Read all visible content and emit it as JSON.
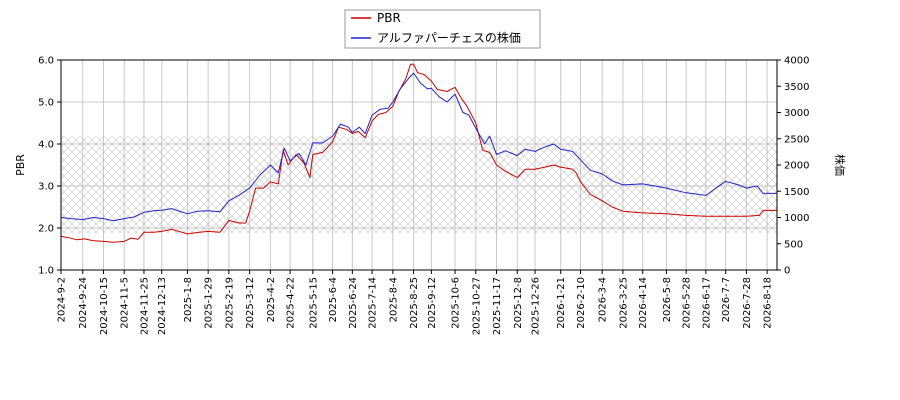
{
  "chart_data": {
    "type": "line",
    "title": "",
    "legend": {
      "placement": "top-center",
      "entries": [
        "PBR",
        "アルファパーチェスの株価"
      ]
    },
    "y_left": {
      "label": "PBR",
      "lim": [
        1.0,
        6.0
      ],
      "ticks": [
        "1.0",
        "2.0",
        "3.0",
        "4.0",
        "5.0",
        "6.0"
      ]
    },
    "y_right": {
      "label": "株価",
      "lim": [
        0,
        4000
      ],
      "ticks": [
        "0",
        "500",
        "1000",
        "1500",
        "2000",
        "2500",
        "3000",
        "3500",
        "4000"
      ]
    },
    "x_lim": [
      "2024-09-02",
      "2026-08-28"
    ],
    "x_ticks": [
      "2024-9-2",
      "2024-9-24",
      "2024-10-15",
      "2024-11-5",
      "2024-11-25",
      "2024-12-13",
      "2025-1-8",
      "2025-1-29",
      "2025-2-19",
      "2025-3-12",
      "2025-4-2",
      "2025-4-22",
      "2025-5-15",
      "2025-6-4",
      "2025-6-24",
      "2025-7-14",
      "2025-8-4",
      "2025-8-25",
      "2025-9-12",
      "2025-10-6",
      "2025-10-27",
      "2025-11-17",
      "2025-12-8",
      "2025-12-26",
      "2026-1-21",
      "2026-2-10",
      "2026-3-4",
      "2026-3-25",
      "2026-4-14",
      "2026-5-8",
      "2026-5-28",
      "2026-6-17",
      "2026-7-7",
      "2026-7-28",
      "2026-8-18"
    ],
    "grid": true,
    "hatch_band": {
      "y2_range": [
        700,
        2550
      ]
    },
    "series": [
      {
        "name": "PBR",
        "axis": "left",
        "color": "#cc0000",
        "points": [
          [
            "2024-09-02",
            1.8
          ],
          [
            "2024-09-10",
            1.77
          ],
          [
            "2024-09-18",
            1.72
          ],
          [
            "2024-09-26",
            1.74
          ],
          [
            "2024-10-04",
            1.7
          ],
          [
            "2024-10-15",
            1.68
          ],
          [
            "2024-10-25",
            1.66
          ],
          [
            "2024-11-05",
            1.68
          ],
          [
            "2024-11-12",
            1.76
          ],
          [
            "2024-11-19",
            1.73
          ],
          [
            "2024-11-25",
            1.9
          ],
          [
            "2024-12-05",
            1.9
          ],
          [
            "2024-12-13",
            1.92
          ],
          [
            "2024-12-23",
            1.97
          ],
          [
            "2025-01-08",
            1.86
          ],
          [
            "2025-01-20",
            1.9
          ],
          [
            "2025-01-29",
            1.92
          ],
          [
            "2025-02-10",
            1.9
          ],
          [
            "2025-02-19",
            2.18
          ],
          [
            "2025-03-01",
            2.12
          ],
          [
            "2025-03-08",
            2.12
          ],
          [
            "2025-03-12",
            2.4
          ],
          [
            "2025-03-18",
            2.95
          ],
          [
            "2025-03-26",
            2.95
          ],
          [
            "2025-04-02",
            3.1
          ],
          [
            "2025-04-10",
            3.05
          ],
          [
            "2025-04-15",
            3.85
          ],
          [
            "2025-04-20",
            3.5
          ],
          [
            "2025-04-28",
            3.75
          ],
          [
            "2025-05-06",
            3.55
          ],
          [
            "2025-05-12",
            3.2
          ],
          [
            "2025-05-15",
            3.75
          ],
          [
            "2025-05-25",
            3.8
          ],
          [
            "2025-06-04",
            4.05
          ],
          [
            "2025-06-10",
            4.4
          ],
          [
            "2025-06-18",
            4.35
          ],
          [
            "2025-06-24",
            4.25
          ],
          [
            "2025-06-30",
            4.3
          ],
          [
            "2025-07-07",
            4.15
          ],
          [
            "2025-07-14",
            4.55
          ],
          [
            "2025-07-20",
            4.7
          ],
          [
            "2025-07-28",
            4.75
          ],
          [
            "2025-08-04",
            4.9
          ],
          [
            "2025-08-10",
            5.25
          ],
          [
            "2025-08-17",
            5.55
          ],
          [
            "2025-08-22",
            5.9
          ],
          [
            "2025-08-25",
            5.9
          ],
          [
            "2025-08-29",
            5.7
          ],
          [
            "2025-09-05",
            5.65
          ],
          [
            "2025-09-12",
            5.5
          ],
          [
            "2025-09-18",
            5.3
          ],
          [
            "2025-09-28",
            5.25
          ],
          [
            "2025-10-06",
            5.35
          ],
          [
            "2025-10-12",
            5.1
          ],
          [
            "2025-10-18",
            4.9
          ],
          [
            "2025-10-27",
            4.5
          ],
          [
            "2025-11-03",
            3.85
          ],
          [
            "2025-11-10",
            3.8
          ],
          [
            "2025-11-17",
            3.5
          ],
          [
            "2025-11-26",
            3.35
          ],
          [
            "2025-12-08",
            3.2
          ],
          [
            "2025-12-16",
            3.4
          ],
          [
            "2025-12-26",
            3.4
          ],
          [
            "2026-01-05",
            3.45
          ],
          [
            "2026-01-14",
            3.5
          ],
          [
            "2026-01-21",
            3.45
          ],
          [
            "2026-02-02",
            3.4
          ],
          [
            "2026-02-06",
            3.3
          ],
          [
            "2026-02-10",
            3.1
          ],
          [
            "2026-02-20",
            2.8
          ],
          [
            "2026-03-04",
            2.65
          ],
          [
            "2026-03-14",
            2.5
          ],
          [
            "2026-03-25",
            2.4
          ],
          [
            "2026-04-14",
            2.36
          ],
          [
            "2026-05-08",
            2.34
          ],
          [
            "2026-05-28",
            2.3
          ],
          [
            "2026-06-17",
            2.28
          ],
          [
            "2026-07-07",
            2.28
          ],
          [
            "2026-07-28",
            2.28
          ],
          [
            "2026-08-10",
            2.3
          ],
          [
            "2026-08-14",
            2.42
          ],
          [
            "2026-08-28",
            2.42
          ]
        ]
      },
      {
        "name": "アルファパーチェスの株価",
        "axis": "right",
        "color": "#2222cc",
        "points": [
          [
            "2024-09-02",
            1000
          ],
          [
            "2024-09-12",
            980
          ],
          [
            "2024-09-24",
            960
          ],
          [
            "2024-10-05",
            1000
          ],
          [
            "2024-10-15",
            980
          ],
          [
            "2024-10-25",
            940
          ],
          [
            "2024-11-05",
            980
          ],
          [
            "2024-11-15",
            1010
          ],
          [
            "2024-11-25",
            1100
          ],
          [
            "2024-12-05",
            1130
          ],
          [
            "2024-12-13",
            1140
          ],
          [
            "2024-12-23",
            1170
          ],
          [
            "2025-01-08",
            1070
          ],
          [
            "2025-01-18",
            1120
          ],
          [
            "2025-01-29",
            1130
          ],
          [
            "2025-02-10",
            1110
          ],
          [
            "2025-02-19",
            1320
          ],
          [
            "2025-03-01",
            1420
          ],
          [
            "2025-03-12",
            1560
          ],
          [
            "2025-03-22",
            1800
          ],
          [
            "2025-04-02",
            2000
          ],
          [
            "2025-04-10",
            1850
          ],
          [
            "2025-04-16",
            2320
          ],
          [
            "2025-04-22",
            2080
          ],
          [
            "2025-05-01",
            2220
          ],
          [
            "2025-05-08",
            2000
          ],
          [
            "2025-05-15",
            2420
          ],
          [
            "2025-05-25",
            2420
          ],
          [
            "2025-06-04",
            2550
          ],
          [
            "2025-06-12",
            2780
          ],
          [
            "2025-06-20",
            2720
          ],
          [
            "2025-06-24",
            2620
          ],
          [
            "2025-07-01",
            2720
          ],
          [
            "2025-07-07",
            2600
          ],
          [
            "2025-07-14",
            2950
          ],
          [
            "2025-07-22",
            3060
          ],
          [
            "2025-07-30",
            3080
          ],
          [
            "2025-08-04",
            3200
          ],
          [
            "2025-08-12",
            3460
          ],
          [
            "2025-08-20",
            3650
          ],
          [
            "2025-08-25",
            3750
          ],
          [
            "2025-09-01",
            3560
          ],
          [
            "2025-09-08",
            3450
          ],
          [
            "2025-09-12",
            3460
          ],
          [
            "2025-09-20",
            3300
          ],
          [
            "2025-09-28",
            3200
          ],
          [
            "2025-10-06",
            3350
          ],
          [
            "2025-10-14",
            3000
          ],
          [
            "2025-10-20",
            2950
          ],
          [
            "2025-10-27",
            2700
          ],
          [
            "2025-11-05",
            2400
          ],
          [
            "2025-11-10",
            2550
          ],
          [
            "2025-11-17",
            2200
          ],
          [
            "2025-11-26",
            2270
          ],
          [
            "2025-12-08",
            2180
          ],
          [
            "2025-12-16",
            2300
          ],
          [
            "2025-12-26",
            2260
          ],
          [
            "2026-01-06",
            2350
          ],
          [
            "2026-01-14",
            2400
          ],
          [
            "2026-01-21",
            2300
          ],
          [
            "2026-02-02",
            2260
          ],
          [
            "2026-02-10",
            2100
          ],
          [
            "2026-02-20",
            1900
          ],
          [
            "2026-03-04",
            1830
          ],
          [
            "2026-03-14",
            1700
          ],
          [
            "2026-03-25",
            1620
          ],
          [
            "2026-04-14",
            1640
          ],
          [
            "2026-05-08",
            1560
          ],
          [
            "2026-05-28",
            1470
          ],
          [
            "2026-06-17",
            1420
          ],
          [
            "2026-07-07",
            1690
          ],
          [
            "2026-07-20",
            1620
          ],
          [
            "2026-07-28",
            1560
          ],
          [
            "2026-08-08",
            1600
          ],
          [
            "2026-08-14",
            1460
          ],
          [
            "2026-08-28",
            1460
          ]
        ]
      }
    ]
  }
}
